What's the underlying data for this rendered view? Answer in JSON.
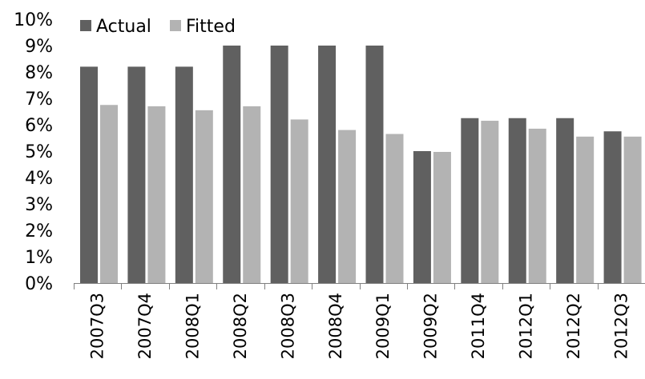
{
  "chart_data": {
    "type": "bar",
    "title": "",
    "xlabel": "",
    "ylabel": "",
    "categories": [
      "2007Q3",
      "2007Q4",
      "2008Q1",
      "2008Q2",
      "2008Q3",
      "2008Q4",
      "2009Q1",
      "2009Q2",
      "2011Q4",
      "2012Q1",
      "2012Q2",
      "2012Q3"
    ],
    "series": [
      {
        "name": "Actual",
        "color": "#606060",
        "values": [
          8.2,
          8.2,
          8.2,
          9.0,
          9.0,
          9.0,
          9.0,
          5.0,
          6.25,
          6.25,
          6.25,
          5.75
        ]
      },
      {
        "name": "Fitted",
        "color": "#b3b3b3",
        "values": [
          6.75,
          6.7,
          6.55,
          6.7,
          6.2,
          5.8,
          5.65,
          4.97,
          6.15,
          5.85,
          5.55,
          5.55
        ]
      }
    ],
    "ylim": [
      0,
      10
    ],
    "yticks": [
      "0%",
      "1%",
      "2%",
      "3%",
      "4%",
      "5%",
      "6%",
      "7%",
      "8%",
      "9%",
      "10%"
    ],
    "grid": false,
    "legend": "top-left"
  }
}
